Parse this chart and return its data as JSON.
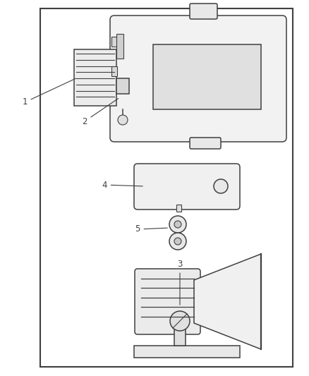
{
  "bg_color": "#ffffff",
  "border_color": "#404040",
  "line_color": "#404040",
  "label_color": "#404040",
  "fig_width": 4.38,
  "fig_height": 5.33,
  "dpi": 100
}
